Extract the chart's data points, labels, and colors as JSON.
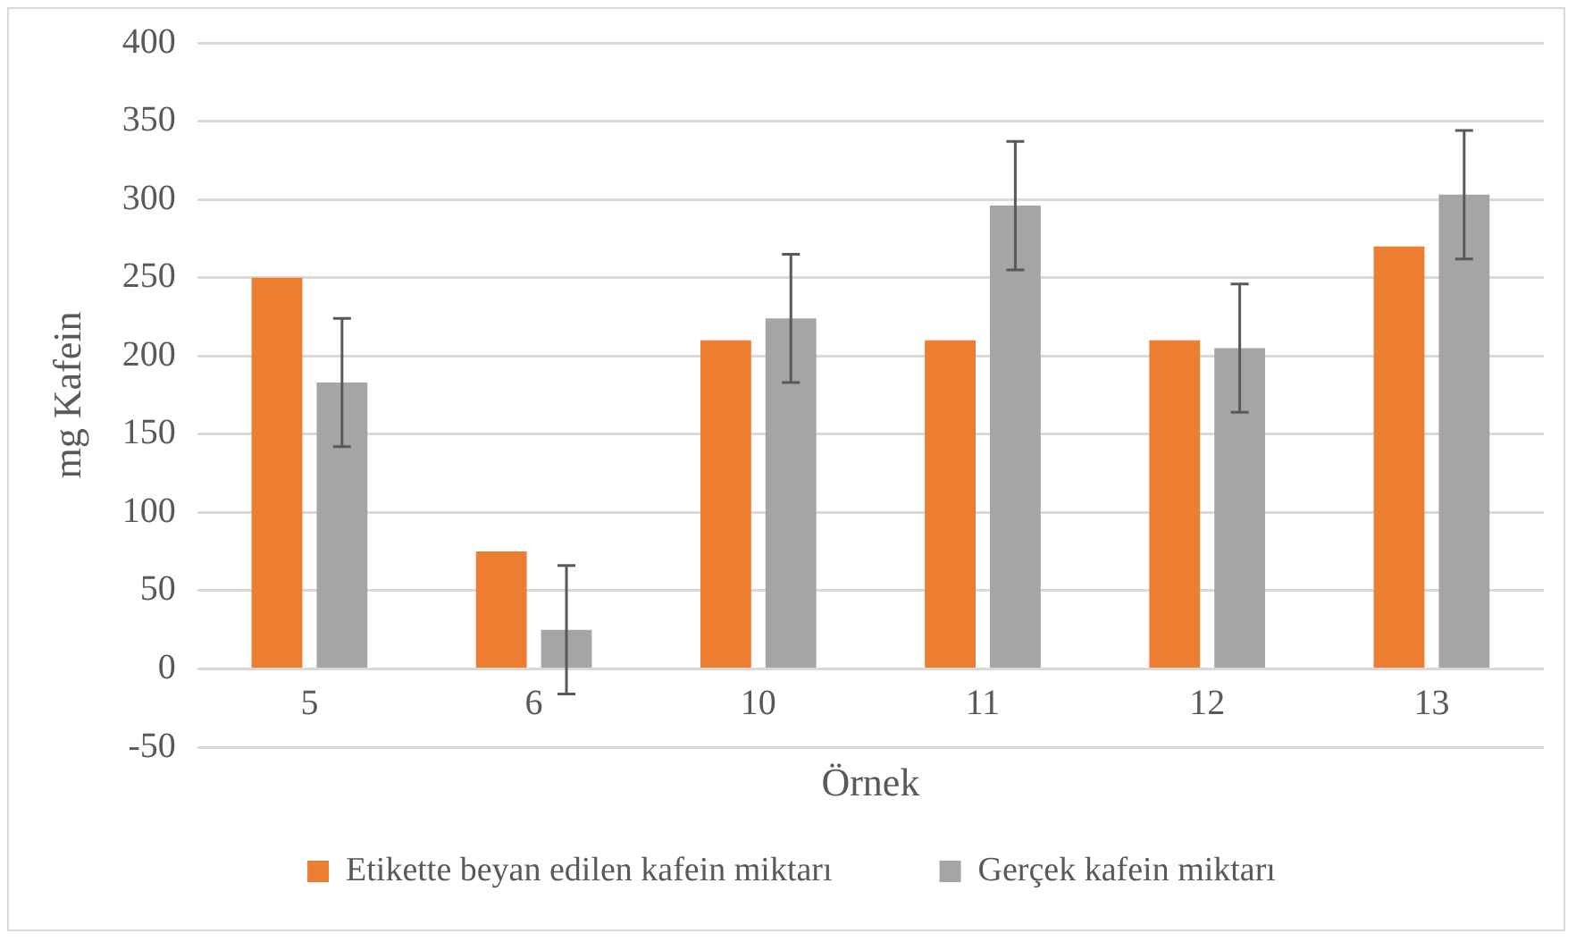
{
  "chart_data": {
    "type": "bar",
    "xlabel": "Örnek",
    "ylabel": "mg Kafein",
    "categories": [
      "5",
      "6",
      "10",
      "11",
      "12",
      "13"
    ],
    "series": [
      {
        "name": "Etikette beyan edilen kafein miktarı",
        "color": "#ed7d31",
        "values": [
          250,
          75,
          210,
          210,
          210,
          270
        ]
      },
      {
        "name": "Gerçek kafein miktarı",
        "color": "#a5a5a5",
        "values": [
          183,
          25,
          224,
          296,
          205,
          303
        ],
        "errors": [
          41,
          41,
          41,
          41,
          41,
          41
        ]
      }
    ],
    "ylim": [
      -50,
      400
    ],
    "yticks": [
      -50,
      0,
      50,
      100,
      150,
      200,
      250,
      300,
      350,
      400
    ],
    "grid": "y",
    "legend": "bottom"
  }
}
